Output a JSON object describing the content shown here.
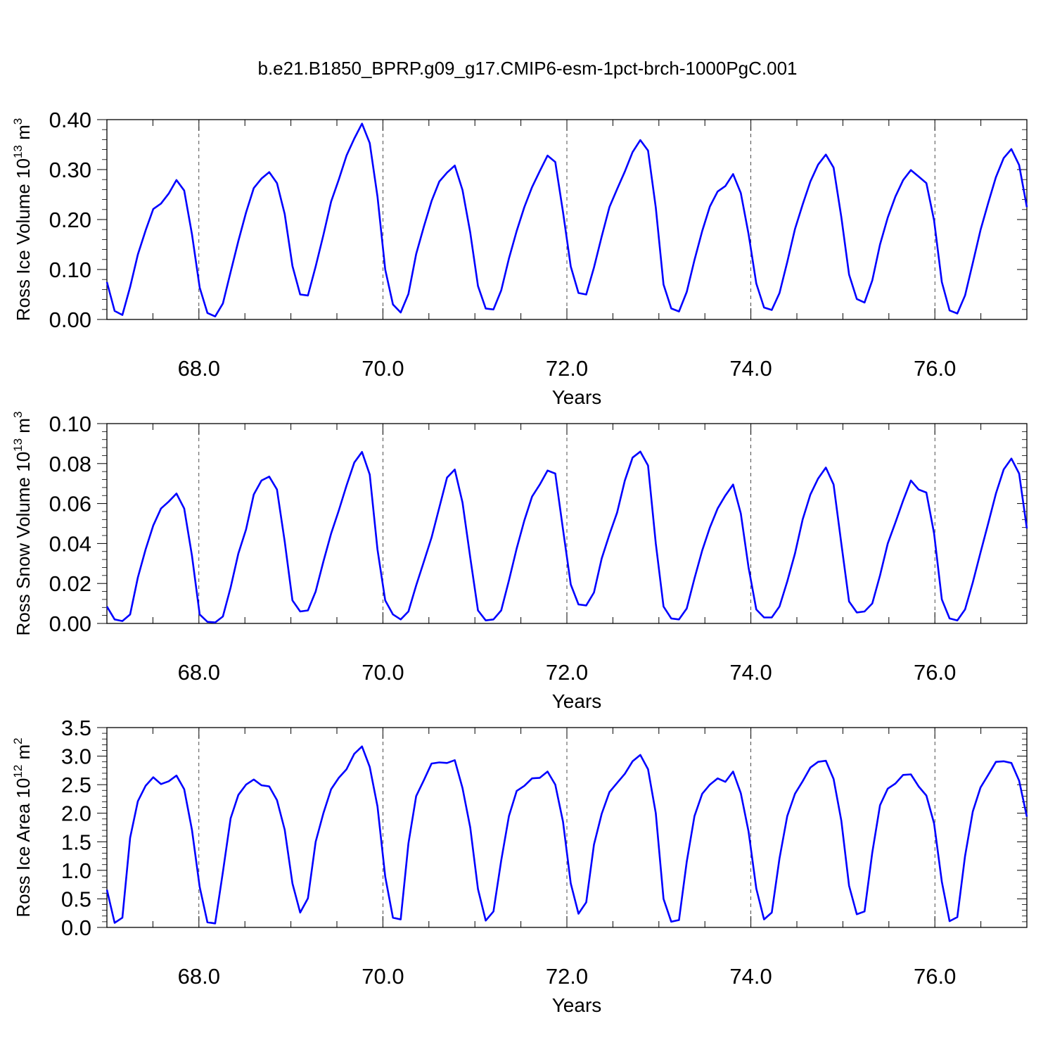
{
  "title": "b.e21.B1850_BPRP.g09_g17.CMIP6-esm-1pct-brch-1000PgC.001",
  "line_color": "#0000ff",
  "chart_data": [
    {
      "type": "line",
      "ylabel_prefix": "Ross Ice Volume 10",
      "ylabel_exp": "13",
      "ylabel_unit": "m",
      "ylabel_unit_exp": "3",
      "xlabel": "Years",
      "xlim": [
        67.0,
        77.0
      ],
      "ylim": [
        0.0,
        0.4
      ],
      "xticks": [
        "68.0",
        "70.0",
        "72.0",
        "74.0",
        "76.0"
      ],
      "yticks": [
        "0.00",
        "0.10",
        "0.20",
        "0.30",
        "0.40"
      ],
      "series": [
        {
          "values": [
            0.075,
            0.017,
            0.009,
            0.065,
            0.13,
            0.178,
            0.221,
            0.232,
            0.252,
            0.279,
            0.258,
            0.171,
            0.064,
            0.013,
            0.006,
            0.032,
            0.095,
            0.157,
            0.214,
            0.263,
            0.282,
            0.295,
            0.273,
            0.211,
            0.107,
            0.05,
            0.048,
            0.106,
            0.169,
            0.236,
            0.28,
            0.328,
            0.362,
            0.392,
            0.353,
            0.246,
            0.1,
            0.03,
            0.014,
            0.051,
            0.131,
            0.186,
            0.237,
            0.276,
            0.294,
            0.308,
            0.259,
            0.174,
            0.067,
            0.022,
            0.02,
            0.058,
            0.122,
            0.177,
            0.225,
            0.265,
            0.297,
            0.328,
            0.315,
            0.215,
            0.106,
            0.053,
            0.05,
            0.104,
            0.166,
            0.225,
            0.261,
            0.296,
            0.335,
            0.359,
            0.338,
            0.224,
            0.07,
            0.022,
            0.016,
            0.055,
            0.119,
            0.177,
            0.226,
            0.256,
            0.267,
            0.291,
            0.253,
            0.171,
            0.072,
            0.024,
            0.019,
            0.053,
            0.115,
            0.181,
            0.23,
            0.276,
            0.31,
            0.33,
            0.304,
            0.205,
            0.09,
            0.041,
            0.034,
            0.078,
            0.15,
            0.204,
            0.246,
            0.279,
            0.299,
            0.286,
            0.273,
            0.198,
            0.075,
            0.018,
            0.012,
            0.048,
            0.113,
            0.179,
            0.233,
            0.285,
            0.323,
            0.341,
            0.309,
            0.225
          ]
        }
      ]
    },
    {
      "type": "line",
      "ylabel_prefix": "Ross Snow Volume 10",
      "ylabel_exp": "13",
      "ylabel_unit": "m",
      "ylabel_unit_exp": "3",
      "xlabel": "Years",
      "xlim": [
        67.0,
        77.0
      ],
      "ylim": [
        0.0,
        0.1
      ],
      "xticks": [
        "68.0",
        "70.0",
        "72.0",
        "74.0",
        "76.0"
      ],
      "yticks": [
        "0.00",
        "0.02",
        "0.04",
        "0.06",
        "0.08",
        "0.10"
      ],
      "series": [
        {
          "values": [
            0.0085,
            0.002,
            0.0012,
            0.0045,
            0.023,
            0.037,
            0.049,
            0.0575,
            0.061,
            0.065,
            0.0575,
            0.034,
            0.0045,
            0.0008,
            0.0005,
            0.0035,
            0.018,
            0.035,
            0.047,
            0.0645,
            0.0715,
            0.0735,
            0.067,
            0.041,
            0.0115,
            0.006,
            0.0065,
            0.016,
            0.031,
            0.045,
            0.0565,
            0.069,
            0.0805,
            0.0858,
            0.0745,
            0.037,
            0.0115,
            0.0045,
            0.002,
            0.006,
            0.019,
            0.031,
            0.043,
            0.058,
            0.073,
            0.077,
            0.0605,
            0.033,
            0.0065,
            0.0015,
            0.002,
            0.0065,
            0.0215,
            0.0375,
            0.0515,
            0.0635,
            0.0695,
            0.0765,
            0.075,
            0.047,
            0.0195,
            0.0095,
            0.009,
            0.0155,
            0.0325,
            0.0445,
            0.0555,
            0.0715,
            0.083,
            0.086,
            0.079,
            0.04,
            0.0085,
            0.0025,
            0.002,
            0.0075,
            0.0225,
            0.0365,
            0.048,
            0.0575,
            0.064,
            0.0695,
            0.055,
            0.028,
            0.007,
            0.003,
            0.003,
            0.0085,
            0.021,
            0.035,
            0.052,
            0.0645,
            0.0725,
            0.078,
            0.0695,
            0.04,
            0.011,
            0.0055,
            0.006,
            0.01,
            0.024,
            0.04,
            0.0505,
            0.0615,
            0.0715,
            0.067,
            0.0655,
            0.045,
            0.012,
            0.0025,
            0.0015,
            0.007,
            0.0205,
            0.0355,
            0.05,
            0.065,
            0.077,
            0.0825,
            0.075,
            0.0475
          ]
        }
      ]
    },
    {
      "type": "line",
      "ylabel_prefix": "Ross Ice Area 10",
      "ylabel_exp": "12",
      "ylabel_unit": "m",
      "ylabel_unit_exp": "2",
      "xlabel": "Years",
      "xlim": [
        67.0,
        77.0
      ],
      "ylim": [
        0.0,
        3.5
      ],
      "xticks": [
        "68.0",
        "70.0",
        "72.0",
        "74.0",
        "76.0"
      ],
      "yticks": [
        "0.0",
        "0.5",
        "1.0",
        "1.5",
        "2.0",
        "2.5",
        "3.0",
        "3.5"
      ],
      "series": [
        {
          "values": [
            0.66,
            0.08,
            0.17,
            1.57,
            2.21,
            2.48,
            2.63,
            2.51,
            2.56,
            2.66,
            2.42,
            1.71,
            0.71,
            0.09,
            0.07,
            0.97,
            1.91,
            2.32,
            2.5,
            2.59,
            2.49,
            2.47,
            2.23,
            1.71,
            0.77,
            0.26,
            0.51,
            1.5,
            2.0,
            2.42,
            2.62,
            2.77,
            3.04,
            3.17,
            2.81,
            2.12,
            0.89,
            0.17,
            0.14,
            1.47,
            2.3,
            2.58,
            2.87,
            2.89,
            2.88,
            2.93,
            2.44,
            1.75,
            0.67,
            0.12,
            0.28,
            1.17,
            1.95,
            2.39,
            2.48,
            2.61,
            2.62,
            2.73,
            2.5,
            1.85,
            0.77,
            0.24,
            0.44,
            1.45,
            1.99,
            2.37,
            2.53,
            2.69,
            2.91,
            3.02,
            2.77,
            2.0,
            0.5,
            0.1,
            0.13,
            1.15,
            1.95,
            2.34,
            2.5,
            2.61,
            2.55,
            2.73,
            2.35,
            1.68,
            0.68,
            0.14,
            0.26,
            1.21,
            1.95,
            2.34,
            2.56,
            2.8,
            2.9,
            2.92,
            2.6,
            1.87,
            0.73,
            0.23,
            0.28,
            1.31,
            2.14,
            2.43,
            2.52,
            2.67,
            2.68,
            2.47,
            2.31,
            1.82,
            0.8,
            0.11,
            0.18,
            1.25,
            2.03,
            2.45,
            2.67,
            2.9,
            2.91,
            2.88,
            2.57,
            1.94
          ]
        }
      ]
    }
  ]
}
